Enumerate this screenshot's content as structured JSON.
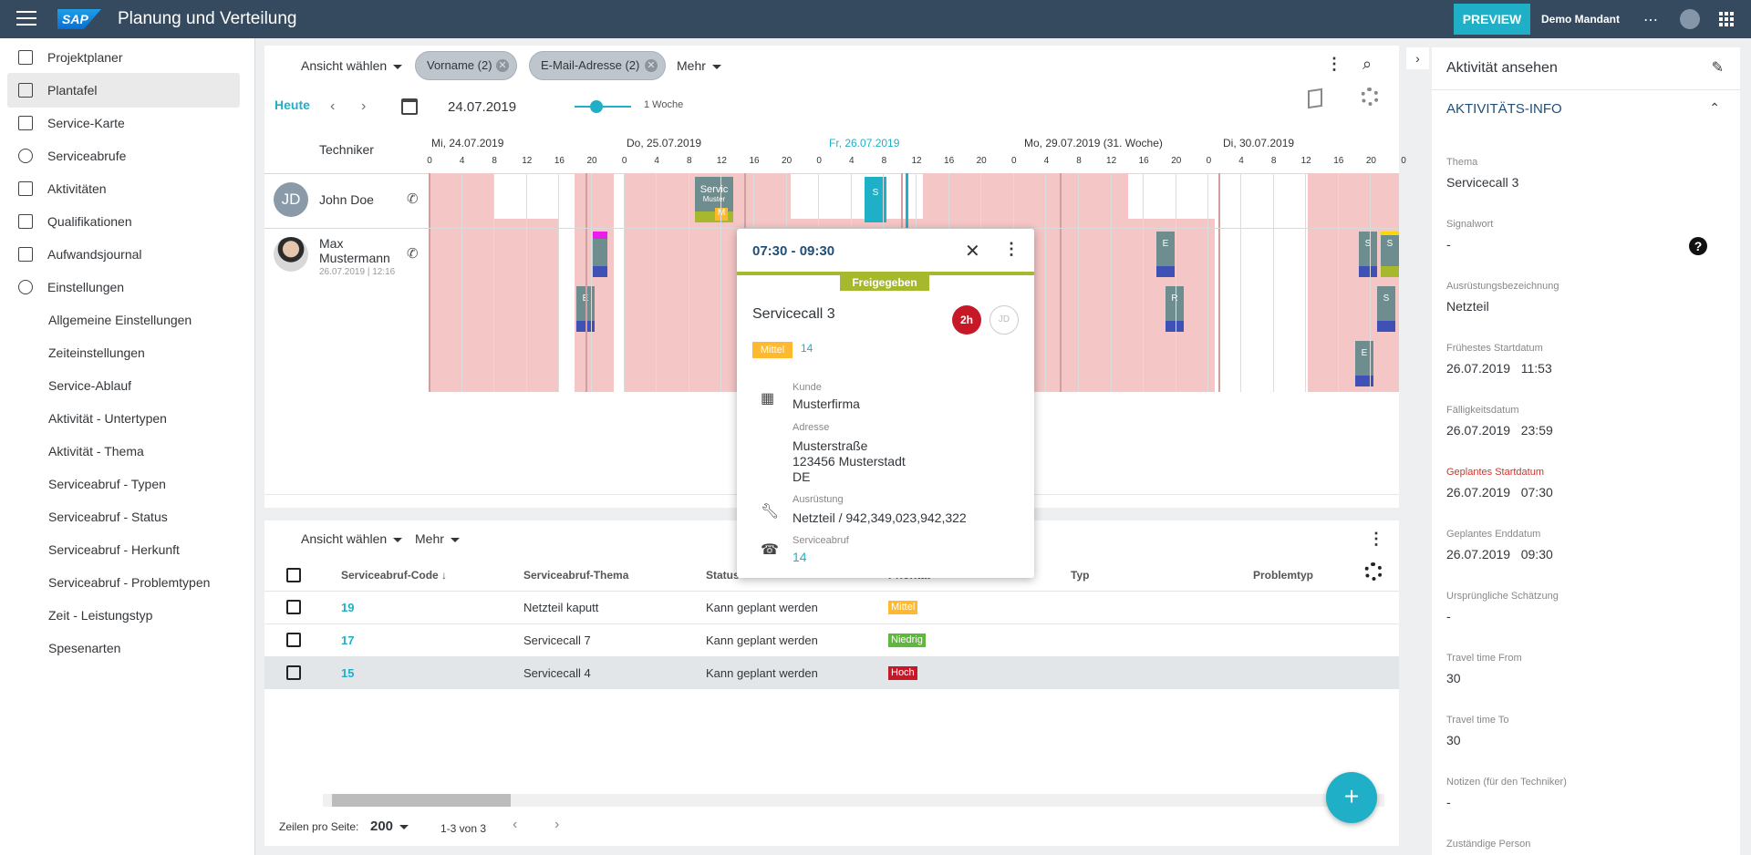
{
  "shell": {
    "logo": "SAP",
    "title": "Planung und Verteilung",
    "preview": "PREVIEW",
    "mandant": "Demo Mandant",
    "more": "⋯"
  },
  "sidebar": {
    "items": [
      {
        "label": "Projektplaner",
        "icon": "project-icon"
      },
      {
        "label": "Plantafel",
        "icon": "planboard-icon"
      },
      {
        "label": "Service-Karte",
        "icon": "map-icon"
      },
      {
        "label": "Serviceabrufe",
        "icon": "phone-icon"
      },
      {
        "label": "Aktivitäten",
        "icon": "clipboard-icon"
      },
      {
        "label": "Qualifikationen",
        "icon": "badge-icon"
      },
      {
        "label": "Aufwandsjournal",
        "icon": "briefcase-icon"
      },
      {
        "label": "Einstellungen",
        "icon": "gear-icon"
      },
      {
        "label": "Allgemeine Einstellungen"
      },
      {
        "label": "Zeiteinstellungen"
      },
      {
        "label": "Service-Ablauf"
      },
      {
        "label": "Aktivität - Untertypen"
      },
      {
        "label": "Aktivität - Thema"
      },
      {
        "label": "Serviceabruf - Typen"
      },
      {
        "label": "Serviceabruf - Status"
      },
      {
        "label": "Serviceabruf - Herkunft"
      },
      {
        "label": "Serviceabruf - Problemtypen"
      },
      {
        "label": "Zeit - Leistungstyp"
      },
      {
        "label": "Spesenarten"
      }
    ]
  },
  "gantt": {
    "view": "Ansicht wählen",
    "chip1": "Vorname (2)",
    "chip2": "E-Mail-Adresse (2)",
    "more": "Mehr",
    "today": "Heute",
    "date": "24.07.2019",
    "zoom": "1 Woche",
    "tech_header": "Techniker",
    "days": [
      "Mi, 24.07.2019",
      "Do, 25.07.2019",
      "Fr, 26.07.2019",
      "Mo, 29.07.2019 (31. Woche)",
      "Di, 30.07.2019"
    ],
    "hours": [
      "0",
      "4",
      "8",
      "12",
      "16",
      "20",
      "0",
      "4",
      "8",
      "12",
      "16",
      "20",
      "0",
      "4",
      "8",
      "12",
      "16",
      "20",
      "0",
      "4",
      "8",
      "12",
      "16",
      "20",
      "0",
      "4",
      "8",
      "12",
      "16",
      "20",
      "0"
    ],
    "tech1": {
      "initials": "JD",
      "name": "John Doe"
    },
    "tech2": {
      "name1": "Max",
      "name2": "Mustermann",
      "sub": "26.07.2019 | 12:16"
    },
    "tasks": {
      "servic": "Servic",
      "muster": "Muster",
      "m": "M",
      "s": "S",
      "e": "E",
      "r": "R"
    }
  },
  "popup": {
    "time": "07:30 - 09:30",
    "status": "Freigegeben",
    "title": "Servicecall 3",
    "duration": "2h",
    "assignee": "JD",
    "priority": "Mittel",
    "code": "14",
    "kunde_lbl": "Kunde",
    "kunde": "Musterfirma",
    "adresse_lbl": "Adresse",
    "addr1": "Musterstraße",
    "addr2": "123456 Musterstadt",
    "addr3": "DE",
    "ausr_lbl": "Ausrüstung",
    "ausr": "Netzteil / 942,349,023,942,322",
    "sa_lbl": "Serviceabruf",
    "sa": "14"
  },
  "table": {
    "view": "Ansicht wählen",
    "more": "Mehr",
    "headers": {
      "code": "Serviceabruf-Code",
      "thema": "Serviceabruf-Thema",
      "status": "Status",
      "prio": "Priorität",
      "typ": "Typ",
      "problem": "Problemtyp"
    },
    "rows": [
      {
        "code": "19",
        "thema": "Netzteil kaputt",
        "status": "Kann geplant werden",
        "prio": "Mittel",
        "color": "#ffb92e"
      },
      {
        "code": "17",
        "thema": "Servicecall 7",
        "status": "Kann geplant werden",
        "prio": "Niedrig",
        "color": "#5fb83b"
      },
      {
        "code": "15",
        "thema": "Servicecall 4",
        "status": "Kann geplant werden",
        "prio": "Hoch",
        "color": "#c71828"
      }
    ],
    "rows_label": "Zeilen pro Seite:",
    "rows_value": "200",
    "range": "1-3 von 3"
  },
  "detail": {
    "header": "Aktivität ansehen",
    "section": "AKTIVITÄTS-INFO",
    "fields": [
      {
        "label": "Thema",
        "value": "Servicecall 3"
      },
      {
        "label": "Signalwort",
        "value": "-"
      },
      {
        "label": "Ausrüstungsbezeichnung",
        "value": "Netzteil"
      },
      {
        "label": "Frühestes Startdatum",
        "value": "26.07.2019   11:53"
      },
      {
        "label": "Fälligkeitsdatum",
        "value": "26.07.2019   23:59"
      },
      {
        "label": "Geplantes Startdatum",
        "value": "26.07.2019   07:30"
      },
      {
        "label": "Geplantes Enddatum",
        "value": "26.07.2019   09:30"
      },
      {
        "label": "Ursprüngliche Schätzung",
        "value": "-"
      },
      {
        "label": "Travel time From",
        "value": "30"
      },
      {
        "label": "Travel time To",
        "value": "30"
      },
      {
        "label": "Notizen (für den Techniker)",
        "value": "-"
      },
      {
        "label": "Zuständige Person",
        "value": ""
      }
    ]
  }
}
